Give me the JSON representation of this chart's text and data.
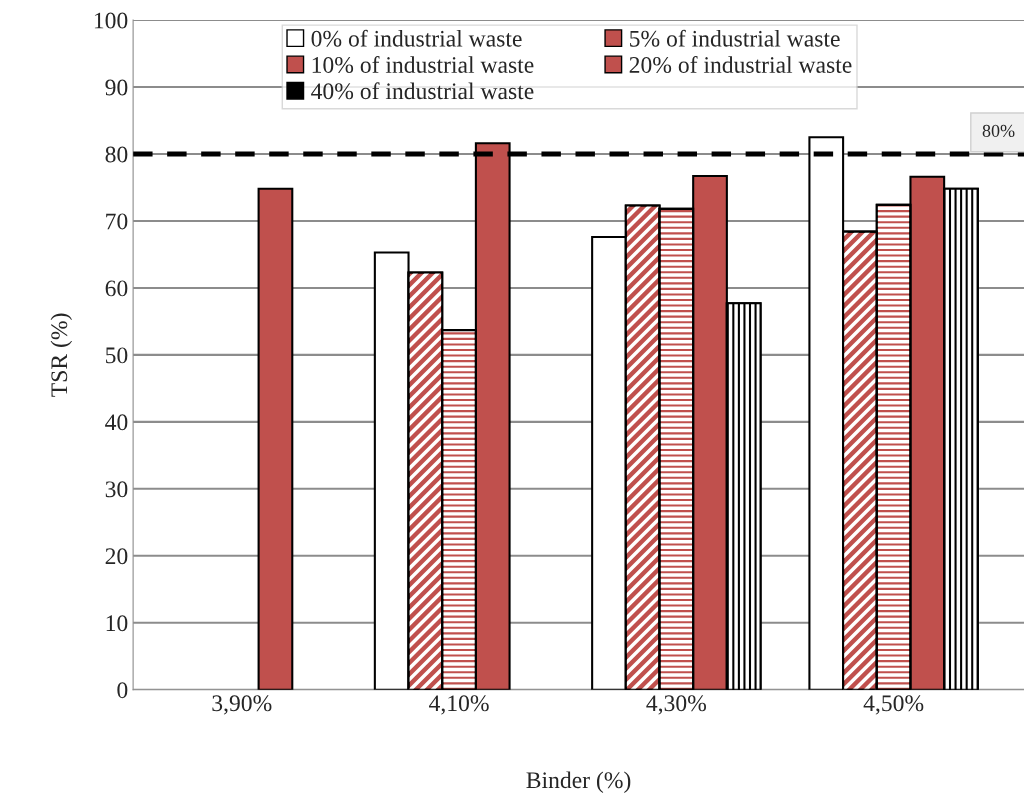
{
  "chart_data": {
    "type": "bar",
    "xlabel": "Binder (%)",
    "ylabel": "TSR (%)",
    "categories": [
      "3,90%",
      "4,10%",
      "4,30%",
      "4,50%"
    ],
    "series": [
      {
        "name": "0% of industrial waste",
        "color": "#ffffff",
        "values": [
          null,
          65.3,
          67.6,
          82.5
        ]
      },
      {
        "name": "5% of industrial waste",
        "color": "#c0504d",
        "values": [
          null,
          62.3,
          72.3,
          68.4
        ]
      },
      {
        "name": "10% of industrial waste",
        "color": "#c0504d",
        "values": [
          null,
          53.7,
          71.8,
          72.4
        ]
      },
      {
        "name": "20% of industrial waste",
        "color": "#c0504d",
        "values": [
          74.8,
          81.6,
          76.7,
          76.6
        ]
      },
      {
        "name": "40% of industrial waste",
        "color": "#000000",
        "values": [
          null,
          null,
          57.7,
          74.8
        ]
      }
    ],
    "ylim": [
      0,
      100
    ],
    "yticks": [
      0,
      10,
      20,
      30,
      40,
      50,
      60,
      70,
      80,
      90,
      100
    ],
    "ref_lines": [
      {
        "axis": "y",
        "value": 80,
        "label": "80%",
        "color": "#000000",
        "line_style": "dashed"
      }
    ],
    "grid": "y",
    "legend": "top"
  }
}
